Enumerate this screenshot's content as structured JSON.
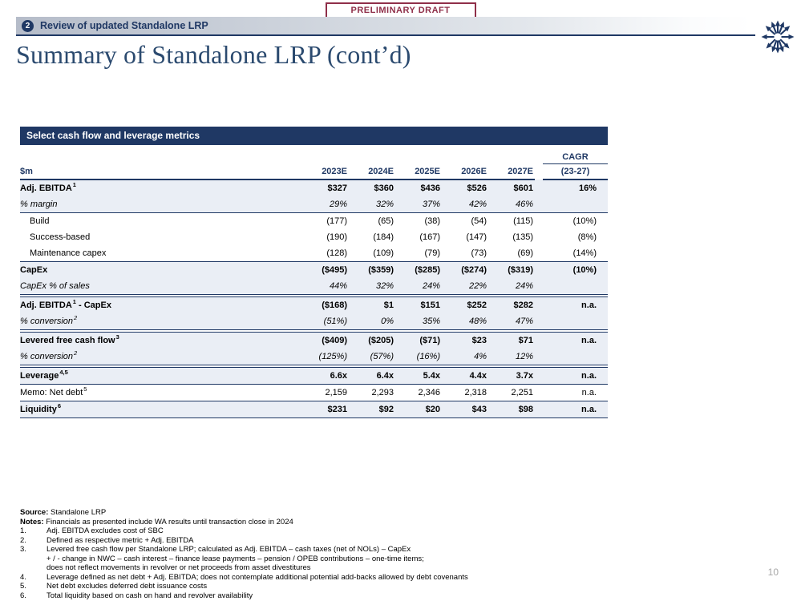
{
  "draft_label": "PRELIMINARY DRAFT",
  "header": {
    "section_number": "2",
    "section_title": "Review of updated Standalone LRP"
  },
  "logo_icon": "starburst-arrows",
  "page_title": "Summary of Standalone LRP (cont’d)",
  "colors": {
    "navy": "#1f3864",
    "row_shade": "#eaeef5",
    "draft_maroon": "#8f2f49",
    "title_blue": "#2b4a6f"
  },
  "table": {
    "title": "Select cash flow and leverage metrics",
    "unit_label": "$m",
    "cagr_label": "CAGR",
    "cagr_sublabel": "(23-27)",
    "columns": [
      "2023E",
      "2024E",
      "2025E",
      "2026E",
      "2027E"
    ],
    "rows": [
      {
        "label": "Adj. EBITDA",
        "sup": "1",
        "bold": true,
        "shaded": true,
        "values": [
          "$327",
          "$360",
          "$436",
          "$526",
          "$601"
        ],
        "cagr": "16%",
        "sep": "none"
      },
      {
        "label": "% margin",
        "italic": true,
        "shaded": true,
        "values": [
          "29%",
          "32%",
          "37%",
          "42%",
          "46%"
        ],
        "cagr": "",
        "sep": "single"
      },
      {
        "label": "Build",
        "indent": true,
        "values": [
          "(177)",
          "(65)",
          "(38)",
          "(54)",
          "(115)"
        ],
        "cagr": "(10%)",
        "sep": "none"
      },
      {
        "label": "Success-based",
        "indent": true,
        "values": [
          "(190)",
          "(184)",
          "(167)",
          "(147)",
          "(135)"
        ],
        "cagr": "(8%)",
        "sep": "none"
      },
      {
        "label": "Maintenance capex",
        "indent": true,
        "values": [
          "(128)",
          "(109)",
          "(79)",
          "(73)",
          "(69)"
        ],
        "cagr": "(14%)",
        "sep": "single"
      },
      {
        "label": "CapEx",
        "bold": true,
        "shaded": true,
        "values": [
          "($495)",
          "($359)",
          "($285)",
          "($274)",
          "($319)"
        ],
        "cagr": "(10%)",
        "sep": "none"
      },
      {
        "label": "CapEx % of sales",
        "italic": true,
        "shaded": true,
        "values": [
          "44%",
          "32%",
          "24%",
          "22%",
          "24%"
        ],
        "cagr": "",
        "sep": "double"
      },
      {
        "label": "Adj. EBITDA",
        "sup": "1",
        "after": " - CapEx",
        "bold": true,
        "shaded": true,
        "values": [
          "($168)",
          "$1",
          "$151",
          "$252",
          "$282"
        ],
        "cagr": "n.a.",
        "sep": "none"
      },
      {
        "label": "% conversion",
        "sup": "2",
        "italic": true,
        "shaded": true,
        "values": [
          "(51%)",
          "0%",
          "35%",
          "48%",
          "47%"
        ],
        "cagr": "",
        "sep": "double"
      },
      {
        "label": "Levered free cash flow",
        "sup": "3",
        "bold": true,
        "shaded": true,
        "values": [
          "($409)",
          "($205)",
          "($71)",
          "$23",
          "$71"
        ],
        "cagr": "n.a.",
        "sep": "none"
      },
      {
        "label": "% conversion",
        "sup": "2",
        "italic": true,
        "shaded": true,
        "values": [
          "(125%)",
          "(57%)",
          "(16%)",
          "4%",
          "12%"
        ],
        "cagr": "",
        "sep": "double"
      },
      {
        "label": "Leverage",
        "sup": "4,5",
        "bold": true,
        "shaded": true,
        "values": [
          "6.6x",
          "6.4x",
          "5.4x",
          "4.4x",
          "3.7x"
        ],
        "cagr": "n.a.",
        "sep": "single"
      },
      {
        "label": "Memo: Net debt",
        "sup": "5",
        "values": [
          "2,159",
          "2,293",
          "2,346",
          "2,318",
          "2,251"
        ],
        "cagr": "n.a.",
        "sep": "single"
      },
      {
        "label": "Liquidity",
        "sup": "6",
        "bold": true,
        "shaded": true,
        "values": [
          "$231",
          "$92",
          "$20",
          "$43",
          "$98"
        ],
        "cagr": "n.a.",
        "sep": "single"
      }
    ]
  },
  "footnotes": {
    "source_label": "Source:",
    "source_text": " Standalone LRP",
    "notes_label": "Notes:",
    "notes_text": " Financials as presented include WA results until transaction close in 2024",
    "items": [
      {
        "num": "1.",
        "lines": [
          "Adj. EBITDA excludes cost of SBC"
        ]
      },
      {
        "num": "2.",
        "lines": [
          "Defined as respective metric + Adj. EBITDA"
        ]
      },
      {
        "num": "3.",
        "lines": [
          "Levered free cash flow per Standalone LRP; calculated as Adj. EBITDA – cash taxes (net of NOLs) – CapEx",
          "+ / - change in NWC – cash interest – finance lease payments – pension / OPEB contributions – one-time items;",
          "does not reflect movements in revolver or net proceeds from asset divestitures"
        ]
      },
      {
        "num": "4.",
        "lines": [
          "Leverage defined as net debt + Adj. EBITDA; does not contemplate additional potential add-backs allowed by debt covenants"
        ]
      },
      {
        "num": "5.",
        "lines": [
          "Net debt excludes deferred debt issuance costs"
        ]
      },
      {
        "num": "6.",
        "lines": [
          "Total liquidity based on cash on hand and revolver availability"
        ]
      }
    ]
  },
  "page_number": "10"
}
